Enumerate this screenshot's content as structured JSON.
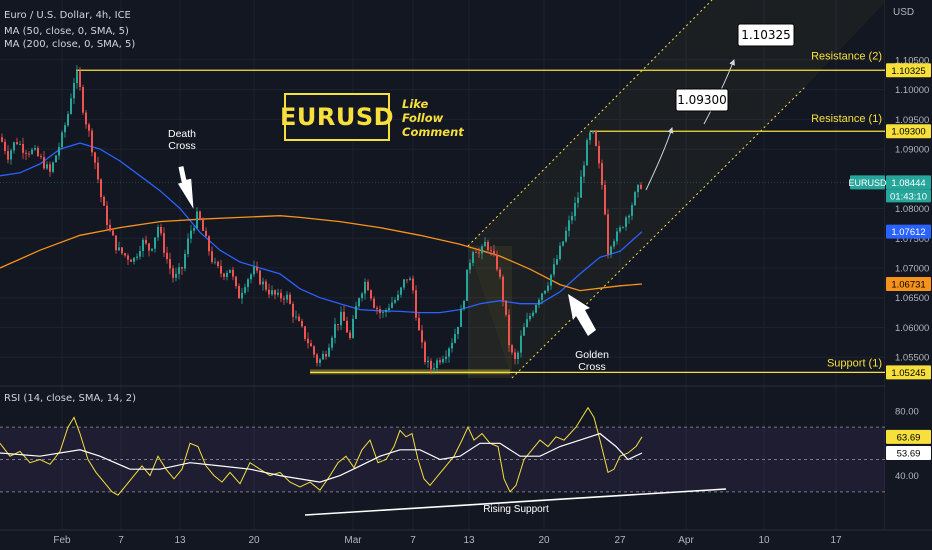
{
  "header": {
    "symbol_title": "Euro / U.S. Dollar, 4h, ICE",
    "ma50_label": "MA (50, close, 0, SMA, 5)",
    "ma200_label": "MA (200, close, 0, SMA, 5)",
    "rsi_label": "RSI (14, close, SMA, 14, 2)",
    "currency": "USD"
  },
  "branding": {
    "ticker_box": "EURUSD",
    "cta": [
      "Like",
      "Follow",
      "Comment"
    ]
  },
  "colors": {
    "background": "#131722",
    "candle_up": "#26a69a",
    "candle_down": "#ef5350",
    "ma50": "#2962ff",
    "ma200": "#f7931a",
    "levels": "#f7e03c",
    "rsi": "#f7e03c",
    "rsi_ma": "#ffffff",
    "channel": "#f7e03c"
  },
  "chart_data": {
    "type": "candlestick",
    "x_ticks": [
      "Feb",
      "7",
      "13",
      "20",
      "Mar",
      "7",
      "13",
      "20",
      "27",
      "Apr",
      "10",
      "17"
    ],
    "price_axis": {
      "ticks": [
        "1.10500",
        "1.10000",
        "1.09500",
        "1.09000",
        "1.08000",
        "1.07500",
        "1.07000",
        "1.06500",
        "1.06000",
        "1.05500"
      ],
      "range": [
        1.0515,
        1.1075
      ]
    },
    "close_path": [
      [
        0,
        1.092
      ],
      [
        8,
        1.089
      ],
      [
        16,
        1.0915
      ],
      [
        24,
        1.09
      ],
      [
        34,
        1.0895
      ],
      [
        42,
        1.088
      ],
      [
        50,
        1.086
      ],
      [
        56,
        1.089
      ],
      [
        62,
        1.092
      ],
      [
        68,
        1.096
      ],
      [
        72,
        1.1
      ],
      [
        76,
        1.103
      ],
      [
        80,
        1.1
      ],
      [
        84,
        1.096
      ],
      [
        90,
        1.092
      ],
      [
        96,
        1.087
      ],
      [
        102,
        1.081
      ],
      [
        110,
        1.076
      ],
      [
        118,
        1.073
      ],
      [
        126,
        1.072
      ],
      [
        134,
        1.0715
      ],
      [
        142,
        1.0745
      ],
      [
        150,
        1.073
      ],
      [
        158,
        1.077
      ],
      [
        166,
        1.072
      ],
      [
        174,
        1.068
      ],
      [
        182,
        1.07
      ],
      [
        190,
        1.076
      ],
      [
        198,
        1.079
      ],
      [
        206,
        1.0745
      ],
      [
        214,
        1.0705
      ],
      [
        222,
        1.069
      ],
      [
        230,
        1.07
      ],
      [
        238,
        1.065
      ],
      [
        246,
        1.068
      ],
      [
        254,
        1.0695
      ],
      [
        262,
        1.0675
      ],
      [
        270,
        1.066
      ],
      [
        278,
        1.065
      ],
      [
        286,
        1.0655
      ],
      [
        294,
        1.062
      ],
      [
        302,
        1.0595
      ],
      [
        310,
        1.057
      ],
      [
        318,
        1.054
      ],
      [
        326,
        1.056
      ],
      [
        334,
        1.06
      ],
      [
        342,
        1.062
      ],
      [
        350,
        1.058
      ],
      [
        358,
        1.065
      ],
      [
        366,
        1.068
      ],
      [
        374,
        1.064
      ],
      [
        382,
        1.062
      ],
      [
        390,
        1.064
      ],
      [
        398,
        1.065
      ],
      [
        406,
        1.0685
      ],
      [
        412,
        1.0675
      ],
      [
        418,
        1.06
      ],
      [
        424,
        1.055
      ],
      [
        430,
        1.053
      ],
      [
        438,
        1.0545
      ],
      [
        446,
        1.056
      ],
      [
        454,
        1.0585
      ],
      [
        462,
        1.063
      ],
      [
        468,
        1.07
      ],
      [
        474,
        1.074
      ],
      [
        480,
        1.072
      ],
      [
        486,
        1.0745
      ],
      [
        492,
        1.072
      ],
      [
        498,
        1.07
      ],
      [
        504,
        1.064
      ],
      [
        510,
        1.056
      ],
      [
        516,
        1.054
      ],
      [
        522,
        1.059
      ],
      [
        530,
        1.062
      ],
      [
        538,
        1.065
      ],
      [
        546,
        1.067
      ],
      [
        554,
        1.07
      ],
      [
        562,
        1.074
      ],
      [
        570,
        1.078
      ],
      [
        578,
        1.082
      ],
      [
        584,
        1.088
      ],
      [
        588,
        1.0915
      ],
      [
        592,
        1.093
      ],
      [
        596,
        1.09
      ],
      [
        600,
        1.086
      ],
      [
        604,
        1.082
      ],
      [
        608,
        1.073
      ],
      [
        612,
        1.075
      ],
      [
        618,
        1.0755
      ],
      [
        624,
        1.078
      ],
      [
        630,
        1.08
      ],
      [
        636,
        1.0825
      ],
      [
        642,
        1.0844
      ]
    ],
    "series": [
      {
        "name": "MA (50, close, 0, SMA, 5)",
        "last_value": "1.07612",
        "points": [
          [
            0,
            1.0855
          ],
          [
            20,
            1.086
          ],
          [
            40,
            1.0875
          ],
          [
            60,
            1.09
          ],
          [
            80,
            1.091
          ],
          [
            100,
            1.09
          ],
          [
            120,
            1.088
          ],
          [
            140,
            1.0855
          ],
          [
            160,
            1.083
          ],
          [
            180,
            1.08
          ],
          [
            200,
            1.076
          ],
          [
            220,
            1.073
          ],
          [
            240,
            1.071
          ],
          [
            260,
            1.07
          ],
          [
            280,
            1.069
          ],
          [
            300,
            1.0665
          ],
          [
            320,
            1.065
          ],
          [
            340,
            1.064
          ],
          [
            360,
            1.063
          ],
          [
            380,
            1.0628
          ],
          [
            400,
            1.0627
          ],
          [
            420,
            1.0625
          ],
          [
            440,
            1.0625
          ],
          [
            460,
            1.063
          ],
          [
            480,
            1.064
          ],
          [
            500,
            1.0645
          ],
          [
            520,
            1.064
          ],
          [
            540,
            1.064
          ],
          [
            560,
            1.066
          ],
          [
            580,
            1.069
          ],
          [
            600,
            1.0718
          ],
          [
            620,
            1.0728
          ],
          [
            642,
            1.0761
          ]
        ]
      },
      {
        "name": "MA (200, close, 0, SMA, 5)",
        "last_value": "1.06731",
        "points": [
          [
            0,
            1.07
          ],
          [
            40,
            1.073
          ],
          [
            80,
            1.0755
          ],
          [
            120,
            1.0768
          ],
          [
            160,
            1.0778
          ],
          [
            200,
            1.0782
          ],
          [
            240,
            1.0785
          ],
          [
            280,
            1.0788
          ],
          [
            300,
            1.0785
          ],
          [
            340,
            1.0778
          ],
          [
            380,
            1.0768
          ],
          [
            420,
            1.0755
          ],
          [
            460,
            1.074
          ],
          [
            500,
            1.072
          ],
          [
            530,
            1.0698
          ],
          [
            560,
            1.0672
          ],
          [
            580,
            1.0662
          ],
          [
            600,
            1.0666
          ],
          [
            620,
            1.067
          ],
          [
            642,
            1.0673
          ]
        ]
      }
    ],
    "price_tags": [
      {
        "text": "1.10325",
        "kind": "resistance"
      },
      {
        "text": "1.09300",
        "kind": "resistance"
      },
      {
        "text": "EURUSD",
        "kind": "symbol"
      },
      {
        "text": "1.08444",
        "kind": "last"
      },
      {
        "text": "01:43:10",
        "kind": "countdown"
      },
      {
        "text": "1.07612",
        "kind": "ma50"
      },
      {
        "text": "1.06731",
        "kind": "ma200"
      },
      {
        "text": "1.05245",
        "kind": "support"
      }
    ],
    "levels": [
      {
        "name": "Resistance (2)",
        "value": 1.10325
      },
      {
        "name": "Resistance (1)",
        "value": 1.093
      },
      {
        "name": "Support (1)",
        "value": 1.05245
      }
    ],
    "targets": [
      "1.09300",
      "1.10325"
    ],
    "annotations": [
      "Death\nCross",
      "Golden\nCross",
      "Rising Support"
    ],
    "rsi": {
      "ticks": [
        "80.00",
        "40.00"
      ],
      "range": [
        20,
        88
      ],
      "last_value": "63.69",
      "ma_value": "53.69",
      "rsi_points": [
        [
          0,
          60
        ],
        [
          10,
          52
        ],
        [
          20,
          55
        ],
        [
          30,
          48
        ],
        [
          40,
          50
        ],
        [
          50,
          47
        ],
        [
          60,
          55
        ],
        [
          68,
          70
        ],
        [
          74,
          76
        ],
        [
          80,
          66
        ],
        [
          88,
          50
        ],
        [
          96,
          42
        ],
        [
          104,
          36
        ],
        [
          112,
          30
        ],
        [
          118,
          28
        ],
        [
          126,
          34
        ],
        [
          134,
          40
        ],
        [
          142,
          46
        ],
        [
          150,
          40
        ],
        [
          158,
          52
        ],
        [
          166,
          44
        ],
        [
          174,
          38
        ],
        [
          182,
          44
        ],
        [
          190,
          60
        ],
        [
          198,
          58
        ],
        [
          206,
          46
        ],
        [
          214,
          40
        ],
        [
          222,
          36
        ],
        [
          230,
          42
        ],
        [
          240,
          35
        ],
        [
          250,
          48
        ],
        [
          260,
          44
        ],
        [
          270,
          40
        ],
        [
          280,
          42
        ],
        [
          290,
          36
        ],
        [
          300,
          33
        ],
        [
          310,
          36
        ],
        [
          320,
          31
        ],
        [
          330,
          40
        ],
        [
          338,
          48
        ],
        [
          346,
          52
        ],
        [
          354,
          45
        ],
        [
          362,
          56
        ],
        [
          370,
          62
        ],
        [
          378,
          48
        ],
        [
          386,
          50
        ],
        [
          394,
          58
        ],
        [
          400,
          68
        ],
        [
          406,
          64
        ],
        [
          412,
          66
        ],
        [
          418,
          50
        ],
        [
          424,
          38
        ],
        [
          430,
          34
        ],
        [
          438,
          40
        ],
        [
          446,
          46
        ],
        [
          454,
          52
        ],
        [
          462,
          62
        ],
        [
          468,
          70
        ],
        [
          474,
          62
        ],
        [
          482,
          66
        ],
        [
          490,
          60
        ],
        [
          498,
          58
        ],
        [
          504,
          38
        ],
        [
          510,
          30
        ],
        [
          516,
          34
        ],
        [
          524,
          50
        ],
        [
          532,
          56
        ],
        [
          540,
          62
        ],
        [
          548,
          58
        ],
        [
          556,
          64
        ],
        [
          564,
          62
        ],
        [
          570,
          66
        ],
        [
          576,
          70
        ],
        [
          582,
          76
        ],
        [
          588,
          82
        ],
        [
          594,
          76
        ],
        [
          600,
          62
        ],
        [
          604,
          52
        ],
        [
          608,
          42
        ],
        [
          614,
          44
        ],
        [
          620,
          52
        ],
        [
          628,
          54
        ],
        [
          636,
          58
        ],
        [
          642,
          64
        ]
      ],
      "ma_points": [
        [
          0,
          54
        ],
        [
          40,
          52
        ],
        [
          80,
          56
        ],
        [
          100,
          52
        ],
        [
          130,
          44
        ],
        [
          160,
          44
        ],
        [
          190,
          48
        ],
        [
          220,
          46
        ],
        [
          250,
          44
        ],
        [
          280,
          40
        ],
        [
          300,
          38
        ],
        [
          320,
          36
        ],
        [
          340,
          40
        ],
        [
          360,
          46
        ],
        [
          380,
          52
        ],
        [
          400,
          56
        ],
        [
          420,
          56
        ],
        [
          440,
          50
        ],
        [
          460,
          52
        ],
        [
          480,
          60
        ],
        [
          500,
          60
        ],
        [
          520,
          52
        ],
        [
          540,
          52
        ],
        [
          560,
          58
        ],
        [
          580,
          62
        ],
        [
          600,
          66
        ],
        [
          616,
          58
        ],
        [
          628,
          50
        ],
        [
          642,
          54
        ]
      ]
    }
  }
}
